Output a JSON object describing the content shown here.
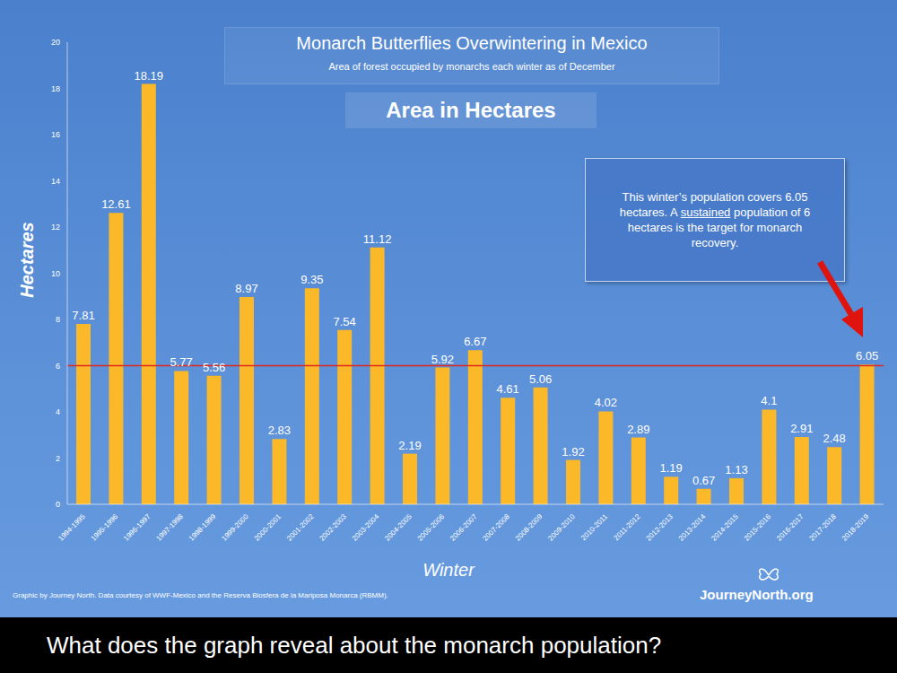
{
  "chart_data": {
    "type": "bar",
    "title": "Monarch Butterflies Overwintering in Mexico",
    "subtitle": "Area of forest occupied by monarchs each winter as of December",
    "heading": "Area in Hectares",
    "ylabel": "Hectares",
    "xlabel": "Winter",
    "categories": [
      "1994-1995",
      "1995-1996",
      "1996-1997",
      "1997-1998",
      "1998-1999",
      "1999-2000",
      "2000-2001",
      "2001-2002",
      "2002-2003",
      "2003-2004",
      "2004-2005",
      "2005-2006",
      "2006-2007",
      "2007-2008",
      "2008-2009",
      "2009-2010",
      "2010-2011",
      "2011-2012",
      "2012-2013",
      "2013-2014",
      "2014-2015",
      "2015-2016",
      "2016-2017",
      "2017-2018",
      "2018-2019"
    ],
    "values": [
      7.81,
      12.61,
      18.19,
      5.77,
      5.56,
      8.97,
      2.83,
      9.35,
      7.54,
      11.12,
      2.19,
      5.92,
      6.67,
      4.61,
      5.06,
      1.92,
      4.02,
      2.89,
      1.19,
      0.67,
      1.13,
      4.1,
      2.91,
      2.48,
      6.05
    ],
    "color": "#fbb829",
    "ylim": [
      0,
      20
    ],
    "yticks": [
      0,
      2,
      4,
      6,
      8,
      10,
      12,
      14,
      16,
      18,
      20
    ],
    "grid": false,
    "data_labels": true,
    "target": 6,
    "annotation": [
      "This winter’s population covers 6.05 hectares. A ",
      "sustained",
      " population of 6 hectares is the target for monarch recovery."
    ],
    "source": "Graphic by Journey North. Data courtesy of WWF-Mexico and the Reserva Biosfera de la Mariposa Monarca (RBMM).",
    "logo": "JourneyNorth.org",
    "caption": "What does the graph reveal about the monarch population?"
  }
}
